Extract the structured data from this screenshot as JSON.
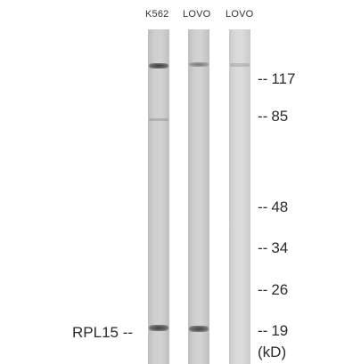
{
  "lanes": [
    {
      "label": "K562"
    },
    {
      "label": "LOVO"
    },
    {
      "label": "LOVO"
    }
  ],
  "markers": [
    {
      "dash": "--",
      "value": "117"
    },
    {
      "dash": "--",
      "value": "85"
    },
    {
      "dash": "--",
      "value": "48"
    },
    {
      "dash": "--",
      "value": "34"
    },
    {
      "dash": "--",
      "value": "26"
    },
    {
      "dash": "--",
      "value": "19"
    }
  ],
  "protein_label": "RPL15 --",
  "unit_label": "(kD)",
  "colors": {
    "background": "#ffffff",
    "lane_fill": "#c8c8c8",
    "lane_light_fill": "#d6d6d6",
    "band_dark": "#4a4a4a",
    "text": "#2b2b2b"
  }
}
